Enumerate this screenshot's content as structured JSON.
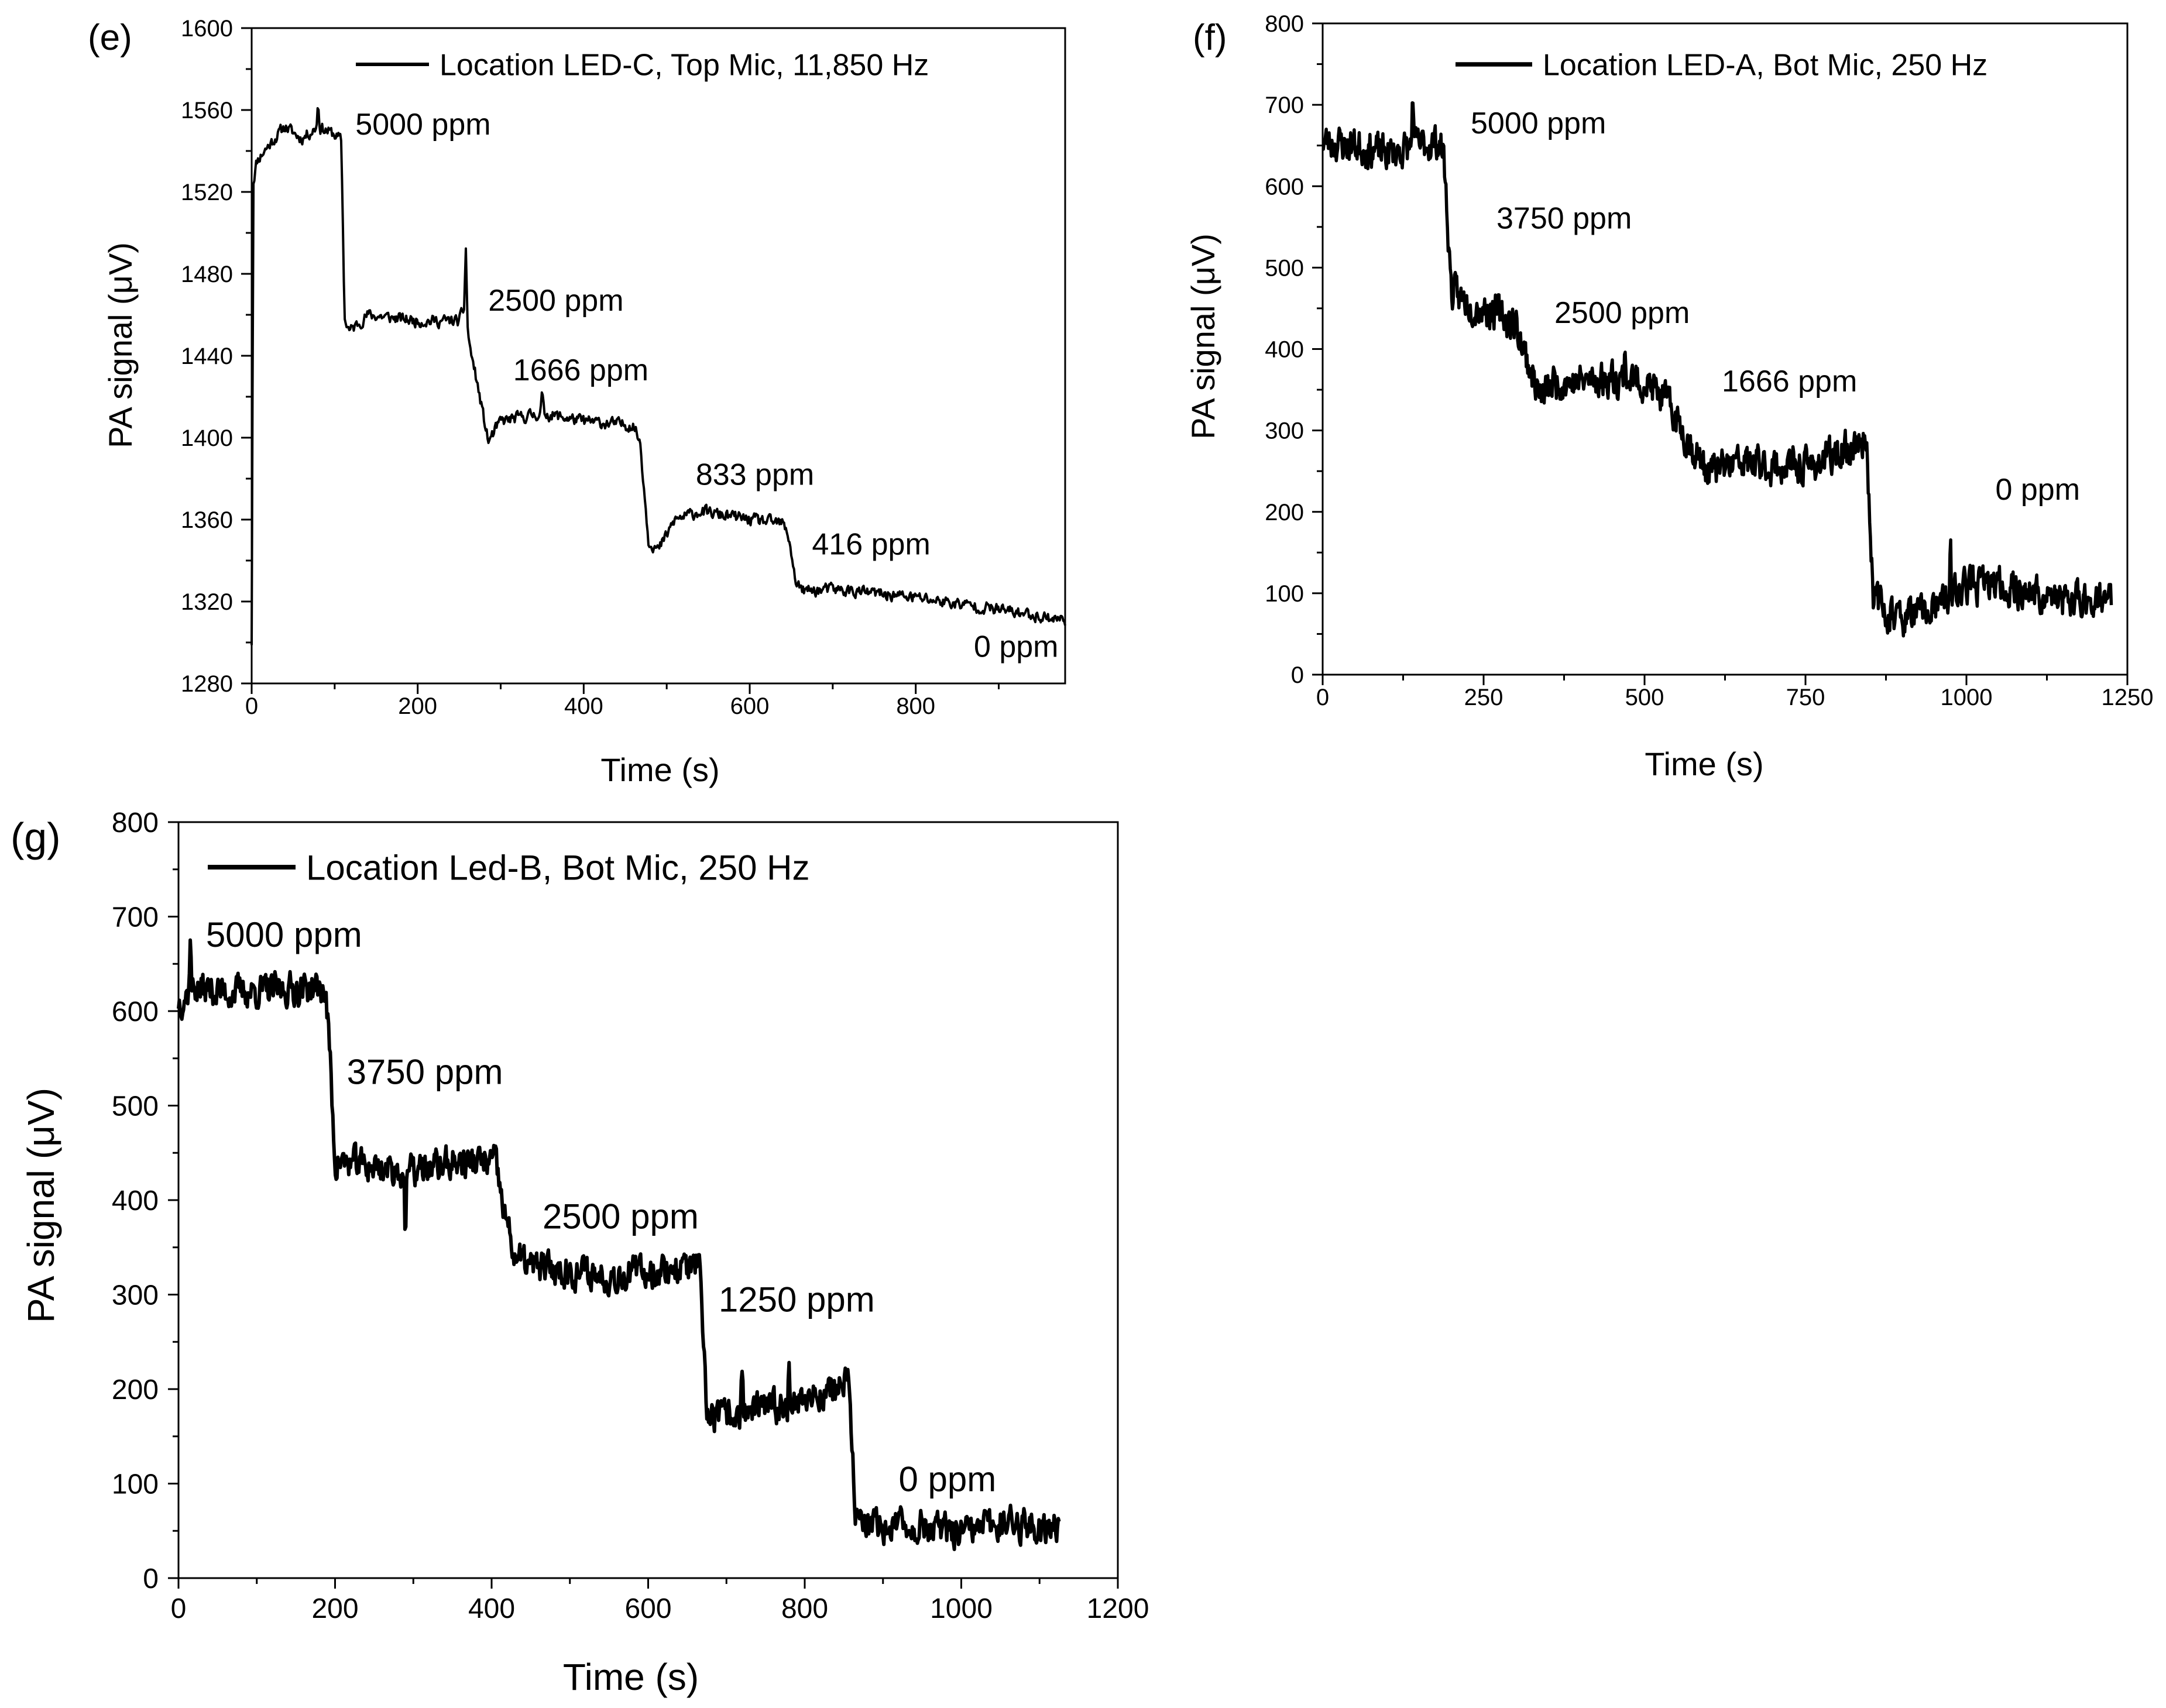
{
  "figure": {
    "background": "#ffffff",
    "ink": "#000000"
  },
  "chart_data": [
    {
      "panel": "(e)",
      "type": "line",
      "title": "",
      "xlabel": "Time (s)",
      "ylabel": "PA signal (μV)",
      "xlim": [
        0,
        980
      ],
      "ylim": [
        1280,
        1600
      ],
      "xticks": [
        0,
        200,
        400,
        600,
        800
      ],
      "yticks": [
        1280,
        1320,
        1360,
        1400,
        1440,
        1480,
        1520,
        1560,
        1600
      ],
      "legend": {
        "label": "Location LED-C, Top Mic, 11,850 Hz",
        "placement": "top"
      },
      "noise": {
        "seed": 11,
        "amp": 4.5,
        "n": 900,
        "spikes": [
          [
            80,
            12
          ],
          [
            258,
            28
          ],
          [
            350,
            10
          ]
        ]
      },
      "series": [
        {
          "name": "Location LED-C, Top Mic, 11,850 Hz",
          "x": [
            0,
            2,
            6,
            15,
            40,
            60,
            80,
            100,
            108,
            112,
            118,
            140,
            200,
            250,
            258,
            262,
            270,
            285,
            300,
            350,
            400,
            460,
            468,
            478,
            490,
            510,
            540,
            600,
            640,
            648,
            655,
            665,
            700,
            800,
            900,
            980
          ],
          "y": [
            1300,
            1525,
            1535,
            1540,
            1552,
            1546,
            1552,
            1548,
            1545,
            1458,
            1452,
            1460,
            1457,
            1457,
            1465,
            1446,
            1430,
            1398,
            1408,
            1412,
            1408,
            1406,
            1398,
            1350,
            1345,
            1360,
            1364,
            1360,
            1358,
            1350,
            1330,
            1325,
            1326,
            1322,
            1316,
            1311
          ]
        }
      ],
      "annotations": [
        {
          "text": "5000 ppm",
          "x": 125,
          "y": 1548
        },
        {
          "text": "2500 ppm",
          "x": 285,
          "y": 1462
        },
        {
          "text": "1666 ppm",
          "x": 315,
          "y": 1428
        },
        {
          "text": "833 ppm",
          "x": 535,
          "y": 1377
        },
        {
          "text": "416 ppm",
          "x": 675,
          "y": 1343
        },
        {
          "text": "0 ppm",
          "x": 870,
          "y": 1293
        }
      ]
    },
    {
      "panel": "(f)",
      "type": "line",
      "title": "",
      "xlabel": "Time (s)",
      "ylabel": "PA signal (μV)",
      "xlim": [
        0,
        1250
      ],
      "ylim": [
        0,
        800
      ],
      "xticks": [
        0,
        250,
        500,
        750,
        1000,
        1250
      ],
      "yticks": [
        0,
        100,
        200,
        300,
        400,
        500,
        600,
        700,
        800
      ],
      "legend": {
        "label": "Location LED-A, Bot Mic, 250 Hz",
        "placement": "top"
      },
      "noise": {
        "seed": 23,
        "amp": 34,
        "n": 1100,
        "spikes": [
          [
            140,
            80
          ],
          [
            470,
            45
          ],
          [
            975,
            70
          ]
        ]
      },
      "series": [
        {
          "name": "Location LED-A, Bot Mic, 250 Hz",
          "x": [
            0,
            50,
            100,
            150,
            180,
            188,
            200,
            230,
            270,
            300,
            320,
            340,
            360,
            400,
            450,
            500,
            530,
            560,
            580,
            600,
            650,
            700,
            750,
            800,
            845,
            855,
            870,
            900,
            950,
            1000,
            1050,
            1100,
            1150,
            1200,
            1225
          ],
          "y": [
            655,
            650,
            640,
            650,
            655,
            640,
            470,
            455,
            445,
            430,
            380,
            340,
            360,
            360,
            365,
            360,
            340,
            300,
            270,
            250,
            260,
            255,
            255,
            270,
            290,
            100,
            80,
            70,
            80,
            110,
            110,
            100,
            90,
            95,
            90
          ]
        }
      ],
      "annotations": [
        {
          "text": "5000 ppm",
          "x": 230,
          "y": 665
        },
        {
          "text": "3750 ppm",
          "x": 270,
          "y": 548
        },
        {
          "text": "2500 ppm",
          "x": 360,
          "y": 432
        },
        {
          "text": "1666 ppm",
          "x": 620,
          "y": 348
        },
        {
          "text": "0 ppm",
          "x": 1045,
          "y": 215
        }
      ]
    },
    {
      "panel": "(g)",
      "type": "line",
      "title": "",
      "xlabel": "Time (s)",
      "ylabel": "PA signal (μV)",
      "xlim": [
        0,
        1200
      ],
      "ylim": [
        0,
        800
      ],
      "xticks": [
        0,
        200,
        400,
        600,
        800,
        1000,
        1200
      ],
      "yticks": [
        0,
        100,
        200,
        300,
        400,
        500,
        600,
        700,
        800
      ],
      "legend": {
        "label": "Location Led-B, Bot Mic, 250 Hz",
        "placement": "top-left"
      },
      "noise": {
        "seed": 37,
        "amp": 27,
        "n": 1050,
        "spikes": [
          [
            15,
            60
          ],
          [
            290,
            -80
          ],
          [
            780,
            60
          ],
          [
            720,
            50
          ]
        ]
      },
      "series": [
        {
          "name": "Location Led-B, Bot Mic, 250 Hz",
          "x": [
            0,
            20,
            60,
            120,
            170,
            188,
            193,
            200,
            210,
            250,
            300,
            350,
            380,
            405,
            415,
            430,
            450,
            500,
            550,
            600,
            650,
            665,
            675,
            690,
            720,
            760,
            800,
            840,
            855,
            865,
            875,
            900,
            950,
            1000,
            1050,
            1100,
            1125
          ],
          "y": [
            610,
            625,
            620,
            622,
            625,
            620,
            560,
            440,
            440,
            435,
            430,
            440,
            440,
            440,
            390,
            340,
            330,
            325,
            320,
            325,
            330,
            330,
            175,
            170,
            175,
            180,
            190,
            200,
            210,
            70,
            55,
            55,
            55,
            45,
            60,
            55,
            55
          ]
        }
      ],
      "annotations": [
        {
          "text": "5000 ppm",
          "x": 35,
          "y": 668
        },
        {
          "text": "3750 ppm",
          "x": 215,
          "y": 523
        },
        {
          "text": "2500 ppm",
          "x": 465,
          "y": 370
        },
        {
          "text": "1250 ppm",
          "x": 690,
          "y": 282
        },
        {
          "text": "0 ppm",
          "x": 920,
          "y": 92
        }
      ]
    }
  ]
}
